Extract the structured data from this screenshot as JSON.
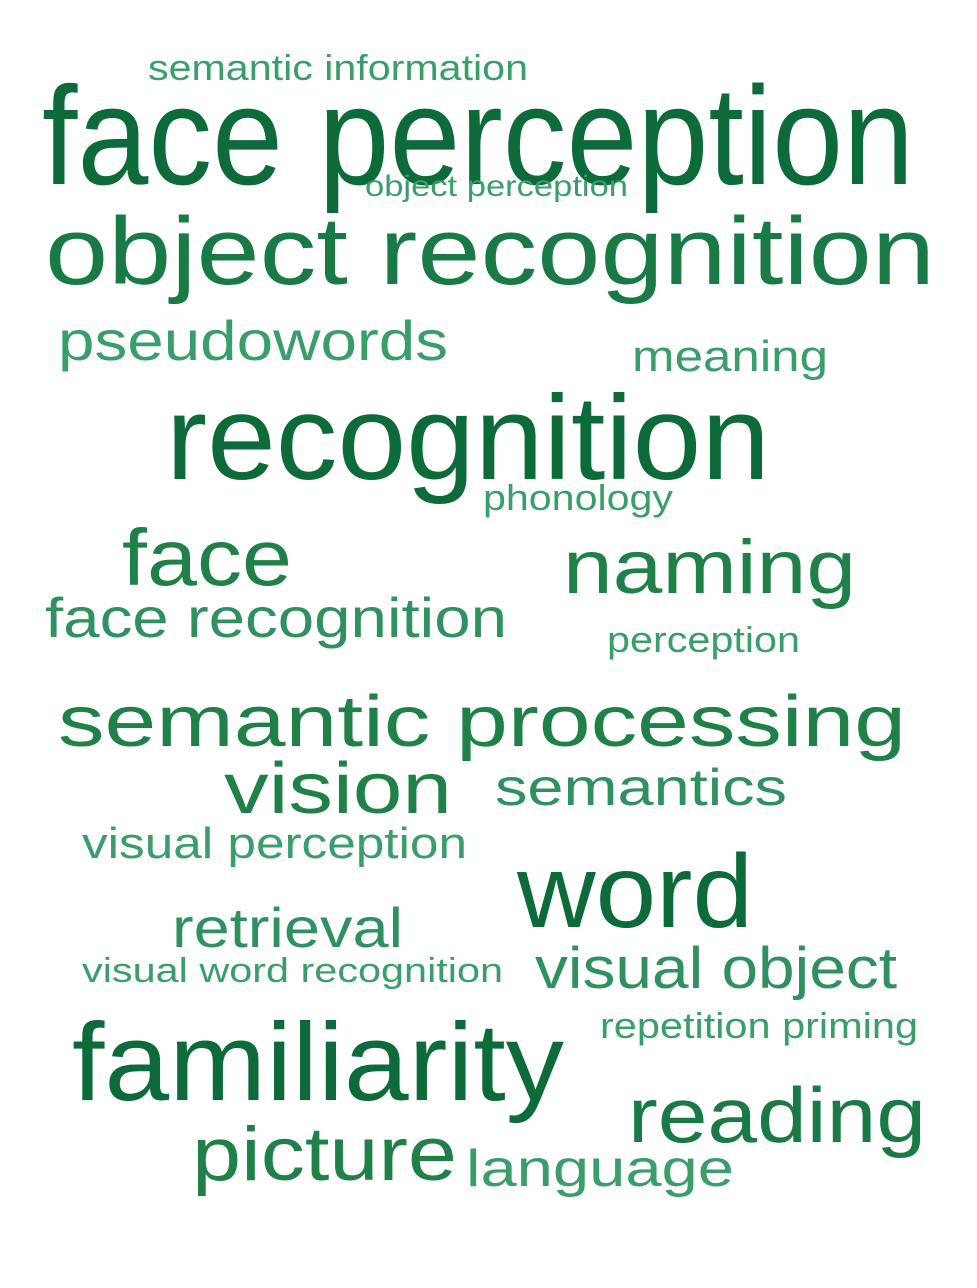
{
  "word_cloud": {
    "words": [
      {
        "text": "semantic information",
        "shade": "#3a9e6a"
      },
      {
        "text": "face perception",
        "shade": "#0d6b3a"
      },
      {
        "text": "object perception",
        "shade": "#3a9e6a"
      },
      {
        "text": "object recognition",
        "shade": "#1a7a45"
      },
      {
        "text": "pseudowords",
        "shade": "#3a9e6a"
      },
      {
        "text": "meaning",
        "shade": "#3a9e6a"
      },
      {
        "text": "recognition",
        "shade": "#0d6b3a"
      },
      {
        "text": "phonology",
        "shade": "#3a9e6a"
      },
      {
        "text": "face",
        "shade": "#1f8048"
      },
      {
        "text": "naming",
        "shade": "#1f8048"
      },
      {
        "text": "face recognition",
        "shade": "#2f9060"
      },
      {
        "text": "perception",
        "shade": "#3a9e6a"
      },
      {
        "text": "semantic processing",
        "shade": "#1f8048"
      },
      {
        "text": "vision",
        "shade": "#1f8048"
      },
      {
        "text": "semantics",
        "shade": "#2f9060"
      },
      {
        "text": "visual perception",
        "shade": "#3a9e6a"
      },
      {
        "text": "word",
        "shade": "#0d6b3a"
      },
      {
        "text": "retrieval",
        "shade": "#2f9060"
      },
      {
        "text": "visual word recognition",
        "shade": "#3a9e6a"
      },
      {
        "text": "visual object",
        "shade": "#2f9060"
      },
      {
        "text": "repetition priming",
        "shade": "#3a9e6a"
      },
      {
        "text": "familiarity",
        "shade": "#0d6b3a"
      },
      {
        "text": "reading",
        "shade": "#1a7a45"
      },
      {
        "text": "picture",
        "shade": "#1f8048"
      },
      {
        "text": "language",
        "shade": "#3a9e6a"
      }
    ]
  }
}
